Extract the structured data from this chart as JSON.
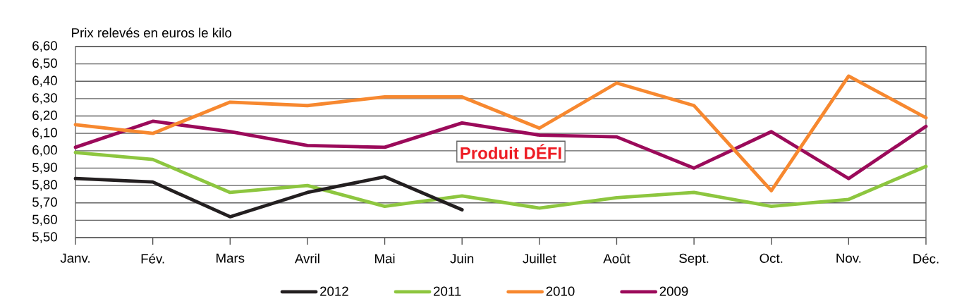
{
  "chart_data": {
    "type": "line",
    "ylabel": "Prix relevés en euros le kilo",
    "categories": [
      "Janv.",
      "Fév.",
      "Mars",
      "Avril",
      "Mai",
      "Juin",
      "Juillet",
      "Août",
      "Sept.",
      "Oct.",
      "Nov.",
      "Déc."
    ],
    "series": [
      {
        "name": "2012",
        "color": "#231f20",
        "values": [
          5.84,
          5.82,
          5.62,
          5.76,
          5.85,
          5.66,
          null,
          null,
          null,
          null,
          null,
          null
        ]
      },
      {
        "name": "2011",
        "color": "#8dc63f",
        "values": [
          5.99,
          5.95,
          5.76,
          5.8,
          5.68,
          5.74,
          5.67,
          5.73,
          5.76,
          5.68,
          5.72,
          5.91
        ]
      },
      {
        "name": "2010",
        "color": "#f7882f",
        "values": [
          6.15,
          6.1,
          6.28,
          6.26,
          6.31,
          6.31,
          6.13,
          6.39,
          6.26,
          5.77,
          6.43,
          6.19
        ]
      },
      {
        "name": "2009",
        "color": "#9b0a5a",
        "values": [
          6.02,
          6.17,
          6.11,
          6.03,
          6.02,
          6.16,
          6.09,
          6.08,
          5.9,
          6.11,
          5.84,
          6.14
        ]
      }
    ],
    "ylim": [
      5.5,
      6.6
    ],
    "yticks": [
      {
        "value": 5.5,
        "label": "5,50"
      },
      {
        "value": 5.6,
        "label": "5,60"
      },
      {
        "value": 5.7,
        "label": "5,70"
      },
      {
        "value": 5.8,
        "label": "5,80"
      },
      {
        "value": 5.9,
        "label": "5,90"
      },
      {
        "value": 6.0,
        "label": "6,00"
      },
      {
        "value": 6.1,
        "label": "6,10"
      },
      {
        "value": 6.2,
        "label": "6,20"
      },
      {
        "value": 6.3,
        "label": "6,30"
      },
      {
        "value": 6.4,
        "label": "6,40"
      },
      {
        "value": 6.5,
        "label": "6,50"
      },
      {
        "value": 6.6,
        "label": "6,60"
      }
    ],
    "grid": "y",
    "legend": "bottom",
    "annotations": [
      "Produit DÉFI"
    ]
  }
}
